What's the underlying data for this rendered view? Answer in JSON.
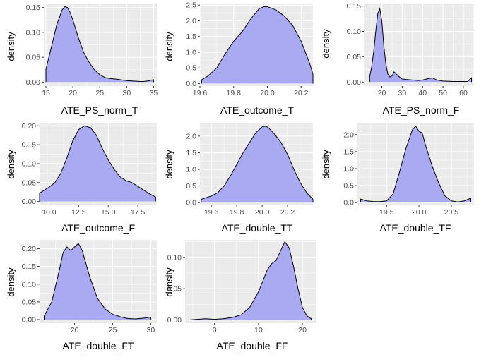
{
  "chart_data": [
    {
      "type": "area",
      "xlabel": "ATE_PS_norm_T",
      "ylabel": "density",
      "xlim": [
        14.6,
        35.6
      ],
      "ylim": [
        -0.008,
        0.158
      ],
      "xticks": [
        15,
        20,
        25,
        30,
        35
      ],
      "yticks": [
        0.0,
        0.05,
        0.1,
        0.15
      ],
      "yticklabels": [
        "0.00",
        "0.05",
        "0.10",
        "0.15"
      ],
      "x": [
        15,
        16,
        17,
        18,
        18.5,
        19,
        19.5,
        20,
        21,
        22,
        23,
        24,
        25,
        26,
        27,
        28,
        30,
        32,
        33,
        34,
        35
      ],
      "y": [
        0.026,
        0.07,
        0.115,
        0.145,
        0.152,
        0.15,
        0.14,
        0.125,
        0.09,
        0.06,
        0.04,
        0.025,
        0.015,
        0.009,
        0.007,
        0.006,
        0.003,
        0.0015,
        0.001,
        0.0025,
        0.005
      ]
    },
    {
      "type": "area",
      "xlabel": "ATE_outcome_T",
      "ylabel": "density",
      "xlim": [
        19.6,
        20.27
      ],
      "ylim": [
        -0.08,
        2.55
      ],
      "xticks": [
        19.6,
        19.8,
        20.0,
        20.2
      ],
      "xticklabels": [
        "19.6",
        "19.8",
        "20.0",
        "20.2"
      ],
      "yticks": [
        0.0,
        0.5,
        1.0,
        1.5,
        2.0,
        2.5
      ],
      "yticklabels": [
        "0.0",
        "0.5",
        "1.0",
        "1.5",
        "2.0",
        "2.5"
      ],
      "x": [
        19.61,
        19.65,
        19.7,
        19.75,
        19.8,
        19.85,
        19.9,
        19.95,
        19.98,
        20.0,
        20.05,
        20.1,
        20.15,
        20.2,
        20.25,
        20.27
      ],
      "y": [
        0.12,
        0.25,
        0.5,
        0.95,
        1.35,
        1.65,
        2.05,
        2.38,
        2.45,
        2.45,
        2.35,
        2.15,
        1.85,
        1.35,
        0.65,
        0.3
      ]
    },
    {
      "type": "area",
      "xlabel": "ATE_PS_norm_F",
      "ylabel": "density",
      "xlim": [
        11.5,
        65.2
      ],
      "ylim": [
        -0.008,
        0.155
      ],
      "xticks": [
        20,
        30,
        40,
        50,
        60
      ],
      "yticks": [
        0.0,
        0.05,
        0.1,
        0.15
      ],
      "yticklabels": [
        "0.00",
        "0.05",
        "0.10",
        "0.15"
      ],
      "x": [
        14,
        15,
        16,
        17,
        18,
        19,
        20,
        21,
        22,
        23,
        24,
        25,
        26,
        28,
        30,
        32,
        35,
        38,
        40,
        43,
        45,
        47,
        50,
        55,
        60,
        62,
        64
      ],
      "y": [
        0.01,
        0.03,
        0.06,
        0.1,
        0.135,
        0.145,
        0.12,
        0.07,
        0.035,
        0.015,
        0.01,
        0.012,
        0.02,
        0.012,
        0.006,
        0.005,
        0.004,
        0.003,
        0.004,
        0.007,
        0.008,
        0.004,
        0.002,
        0.001,
        0.001,
        0.001,
        0.008
      ]
    },
    {
      "type": "area",
      "xlabel": "ATE_outcome_F",
      "ylabel": "density",
      "xlim": [
        9.2,
        19.1
      ],
      "ylim": [
        -0.01,
        0.208
      ],
      "xticks": [
        10.0,
        12.5,
        15.0,
        17.5
      ],
      "xticklabels": [
        "10.0",
        "12.5",
        "15.0",
        "17.5"
      ],
      "yticks": [
        0.0,
        0.05,
        0.1,
        0.15,
        0.2
      ],
      "yticklabels": [
        "0.00",
        "0.05",
        "0.10",
        "0.15",
        "0.20"
      ],
      "x": [
        9.2,
        10,
        10.5,
        11,
        11.5,
        12,
        12.5,
        13,
        13.5,
        14,
        14.5,
        15,
        15.5,
        16,
        16.5,
        17,
        17.5,
        18,
        18.5,
        19
      ],
      "y": [
        0.022,
        0.038,
        0.05,
        0.075,
        0.115,
        0.16,
        0.19,
        0.2,
        0.195,
        0.175,
        0.14,
        0.11,
        0.085,
        0.065,
        0.055,
        0.05,
        0.04,
        0.03,
        0.02,
        0.012
      ]
    },
    {
      "type": "area",
      "xlabel": "ATE_double_TT",
      "ylabel": "density",
      "xlim": [
        19.51,
        20.4
      ],
      "ylim": [
        -0.08,
        2.4
      ],
      "xticks": [
        19.6,
        19.8,
        20.0,
        20.2
      ],
      "xticklabels": [
        "19.6",
        "19.8",
        "20.0",
        "20.2"
      ],
      "yticks": [
        0.0,
        0.5,
        1.0,
        1.5,
        2.0
      ],
      "yticklabels": [
        "0.0",
        "0.5",
        "1.0",
        "1.5",
        "2.0"
      ],
      "x": [
        19.52,
        19.6,
        19.65,
        19.7,
        19.75,
        19.8,
        19.85,
        19.9,
        19.95,
        20.0,
        20.03,
        20.05,
        20.1,
        20.15,
        20.2,
        20.25,
        20.3,
        20.35,
        20.4
      ],
      "y": [
        0.1,
        0.2,
        0.3,
        0.5,
        0.8,
        1.15,
        1.5,
        1.8,
        2.1,
        2.28,
        2.3,
        2.25,
        2.05,
        1.8,
        1.45,
        1.0,
        0.6,
        0.3,
        0.1
      ]
    },
    {
      "type": "area",
      "xlabel": "ATE_double_TF",
      "ylabel": "density",
      "xlim": [
        19.05,
        20.85
      ],
      "ylim": [
        -0.08,
        2.35
      ],
      "xticks": [
        19.5,
        20.0,
        20.5
      ],
      "xticklabels": [
        "19.5",
        "20.0",
        "20.5"
      ],
      "yticks": [
        0.0,
        0.5,
        1.0,
        1.5,
        2.0
      ],
      "yticklabels": [
        "0.0",
        "0.5",
        "1.0",
        "1.5",
        "2.0"
      ],
      "x": [
        19.1,
        19.2,
        19.3,
        19.4,
        19.5,
        19.6,
        19.7,
        19.8,
        19.9,
        19.95,
        20.0,
        20.05,
        20.1,
        20.2,
        20.3,
        20.4,
        20.5,
        20.6,
        20.7,
        20.8
      ],
      "y": [
        0.1,
        0.05,
        0.03,
        0.03,
        0.05,
        0.25,
        0.9,
        1.6,
        2.15,
        2.25,
        2.1,
        2.05,
        1.7,
        1.1,
        0.6,
        0.2,
        0.05,
        0.02,
        0.05,
        0.13
      ]
    },
    {
      "type": "area",
      "xlabel": "ATE_double_FT",
      "ylabel": "density",
      "xlim": [
        15.4,
        30.8
      ],
      "ylim": [
        -0.01,
        0.225
      ],
      "xticks": [
        20,
        25,
        30
      ],
      "yticks": [
        0.0,
        0.05,
        0.1,
        0.15,
        0.2
      ],
      "yticklabels": [
        "0.00",
        "0.05",
        "0.10",
        "0.15",
        "0.20"
      ],
      "x": [
        16,
        17,
        18,
        18.5,
        19,
        19.5,
        20,
        20.5,
        21,
        22,
        23,
        24,
        25,
        26,
        27,
        28,
        29,
        30
      ],
      "y": [
        0.01,
        0.05,
        0.14,
        0.19,
        0.205,
        0.195,
        0.205,
        0.215,
        0.195,
        0.12,
        0.06,
        0.03,
        0.015,
        0.008,
        0.003,
        0.002,
        0.004,
        0.007
      ]
    },
    {
      "type": "area",
      "xlabel": "ATE_double_FF",
      "ylabel": "density",
      "xlim": [
        -6.7,
        23.2
      ],
      "ylim": [
        -0.005,
        0.128
      ],
      "xticks": [
        0,
        10,
        20
      ],
      "yticks": [
        0.0,
        0.05,
        0.1
      ],
      "yticklabels": [
        "0.00",
        "0.05",
        "0.10"
      ],
      "x": [
        -6,
        -4,
        -2,
        0,
        2,
        4,
        6,
        8,
        10,
        12,
        13,
        14,
        15,
        16,
        17,
        18,
        19,
        20,
        21,
        22
      ],
      "y": [
        0.0,
        0.001,
        0.002,
        0.001,
        0.002,
        0.004,
        0.008,
        0.02,
        0.045,
        0.08,
        0.09,
        0.095,
        0.11,
        0.125,
        0.115,
        0.085,
        0.05,
        0.02,
        0.007,
        0.002
      ]
    }
  ],
  "colors": {
    "panel_bg": "#ebebeb",
    "gridline": "#ffffff",
    "fill": "#aaaaf2",
    "line": "#000000",
    "axis_text": "#4d4d4d",
    "title_text": "#000000"
  }
}
